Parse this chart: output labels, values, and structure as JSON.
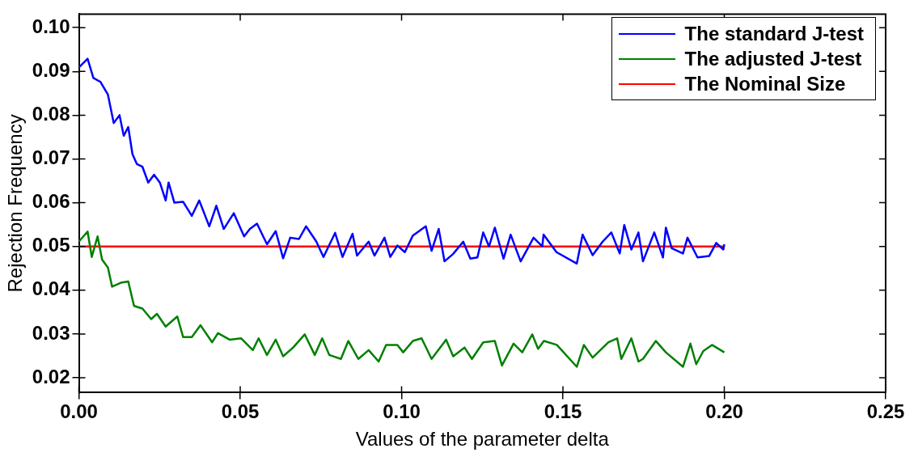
{
  "chart_data": {
    "type": "line",
    "xlabel": "Values of the parameter delta",
    "ylabel": "Rejection Frequency",
    "xlim": [
      0,
      0.25
    ],
    "ylim": [
      0.0166,
      0.1031
    ],
    "xticks": [
      {
        "value": 0,
        "label": "0.00"
      },
      {
        "value": 0.05,
        "label": "0.05"
      },
      {
        "value": 0.1,
        "label": "0.10"
      },
      {
        "value": 0.15,
        "label": "0.15"
      },
      {
        "value": 0.2,
        "label": "0.20"
      },
      {
        "value": 0.25,
        "label": "0.25"
      }
    ],
    "yticks": [
      {
        "value": 0.02,
        "label": "0.02"
      },
      {
        "value": 0.03,
        "label": "0.03"
      },
      {
        "value": 0.04,
        "label": "0.04"
      },
      {
        "value": 0.05,
        "label": "0.05"
      },
      {
        "value": 0.06,
        "label": "0.06"
      },
      {
        "value": 0.07,
        "label": "0.07"
      },
      {
        "value": 0.08,
        "label": "0.08"
      },
      {
        "value": 0.09,
        "label": "0.09"
      },
      {
        "value": 0.1,
        "label": "0.10"
      }
    ],
    "grid": false,
    "legend": "top right",
    "marker": "none",
    "line_style": "solid",
    "series": [
      {
        "name": "The standard J-test",
        "color": "#0000ff",
        "x": [
          0,
          0.0027,
          0.0045,
          0.0067,
          0.009,
          0.0108,
          0.0126,
          0.0139,
          0.0153,
          0.0166,
          0.018,
          0.0197,
          0.0215,
          0.0233,
          0.0251,
          0.0269,
          0.0278,
          0.0296,
          0.0323,
          0.035,
          0.0373,
          0.0404,
          0.0426,
          0.0449,
          0.048,
          0.0512,
          0.053,
          0.0552,
          0.0583,
          0.061,
          0.0633,
          0.0655,
          0.0682,
          0.0704,
          0.0736,
          0.0758,
          0.0794,
          0.0817,
          0.0848,
          0.0862,
          0.0898,
          0.0916,
          0.0947,
          0.0965,
          0.0987,
          0.101,
          0.1035,
          0.1075,
          0.1093,
          0.1115,
          0.1133,
          0.116,
          0.1191,
          0.1213,
          0.1235,
          0.1253,
          0.1271,
          0.1289,
          0.1316,
          0.1338,
          0.1369,
          0.1409,
          0.1436,
          0.144,
          0.148,
          0.1543,
          0.1561,
          0.1592,
          0.1623,
          0.165,
          0.1676,
          0.169,
          0.1712,
          0.1734,
          0.1748,
          0.1783,
          0.181,
          0.1819,
          0.1837,
          0.1872,
          0.1886,
          0.1917,
          0.1953,
          0.1975,
          0.1997,
          0.2
        ],
        "values": [
          0.0909,
          0.0929,
          0.0885,
          0.0876,
          0.0847,
          0.0782,
          0.08,
          0.0753,
          0.0773,
          0.0711,
          0.0688,
          0.0682,
          0.0646,
          0.0664,
          0.0646,
          0.0605,
          0.0646,
          0.06,
          0.0602,
          0.057,
          0.0605,
          0.0546,
          0.0593,
          0.054,
          0.0576,
          0.0523,
          0.054,
          0.0552,
          0.0505,
          0.0535,
          0.0473,
          0.052,
          0.0517,
          0.0546,
          0.0511,
          0.0476,
          0.0531,
          0.0476,
          0.0529,
          0.0479,
          0.0511,
          0.0479,
          0.052,
          0.0476,
          0.0502,
          0.0487,
          0.0525,
          0.0546,
          0.049,
          0.054,
          0.0466,
          0.0483,
          0.0511,
          0.0472,
          0.0475,
          0.0532,
          0.05,
          0.0543,
          0.0472,
          0.0527,
          0.0466,
          0.052,
          0.05,
          0.0527,
          0.0487,
          0.0461,
          0.0527,
          0.048,
          0.0511,
          0.0532,
          0.0484,
          0.0549,
          0.0493,
          0.0532,
          0.0466,
          0.0532,
          0.0475,
          0.0543,
          0.0496,
          0.0484,
          0.052,
          0.0475,
          0.0478,
          0.0508,
          0.0493,
          0.0505
        ]
      },
      {
        "name": "The adjusted J-test",
        "color": "#008000",
        "x": [
          0,
          0.0027,
          0.004,
          0.0058,
          0.0072,
          0.009,
          0.0103,
          0.013,
          0.0153,
          0.0171,
          0.0197,
          0.0224,
          0.0242,
          0.0269,
          0.0305,
          0.0323,
          0.035,
          0.0377,
          0.0413,
          0.0431,
          0.0467,
          0.0503,
          0.0539,
          0.0557,
          0.0583,
          0.061,
          0.0633,
          0.0664,
          0.07,
          0.0731,
          0.0754,
          0.0776,
          0.0812,
          0.0835,
          0.0866,
          0.0898,
          0.0929,
          0.0952,
          0.0987,
          0.1005,
          0.1035,
          0.1062,
          0.1093,
          0.1138,
          0.116,
          0.1195,
          0.1218,
          0.1253,
          0.1289,
          0.1311,
          0.1347,
          0.1374,
          0.1405,
          0.1423,
          0.1441,
          0.1481,
          0.1543,
          0.1565,
          0.1592,
          0.1641,
          0.1668,
          0.1681,
          0.1712,
          0.1734,
          0.1748,
          0.1788,
          0.1819,
          0.1872,
          0.1895,
          0.1913,
          0.1935,
          0.1962,
          0.2
        ],
        "values": [
          0.0511,
          0.0534,
          0.0476,
          0.0523,
          0.047,
          0.0452,
          0.0408,
          0.0417,
          0.042,
          0.0364,
          0.0358,
          0.0334,
          0.0346,
          0.0317,
          0.034,
          0.0293,
          0.0293,
          0.032,
          0.0281,
          0.0302,
          0.0287,
          0.029,
          0.0263,
          0.029,
          0.0252,
          0.0287,
          0.0249,
          0.0269,
          0.0299,
          0.0252,
          0.029,
          0.0252,
          0.0243,
          0.0284,
          0.0243,
          0.0263,
          0.0237,
          0.0275,
          0.0275,
          0.0258,
          0.0284,
          0.029,
          0.0243,
          0.0287,
          0.0249,
          0.0269,
          0.0243,
          0.0281,
          0.0284,
          0.0228,
          0.0278,
          0.0258,
          0.0299,
          0.0266,
          0.0284,
          0.0275,
          0.0225,
          0.0275,
          0.0246,
          0.0281,
          0.029,
          0.0243,
          0.029,
          0.0237,
          0.0243,
          0.0284,
          0.0258,
          0.0225,
          0.0278,
          0.0231,
          0.0261,
          0.0275,
          0.0258
        ]
      },
      {
        "name": "The Nominal Size",
        "color": "#ff0000",
        "x": [
          0,
          0.2
        ],
        "values": [
          0.05,
          0.05
        ]
      }
    ]
  }
}
